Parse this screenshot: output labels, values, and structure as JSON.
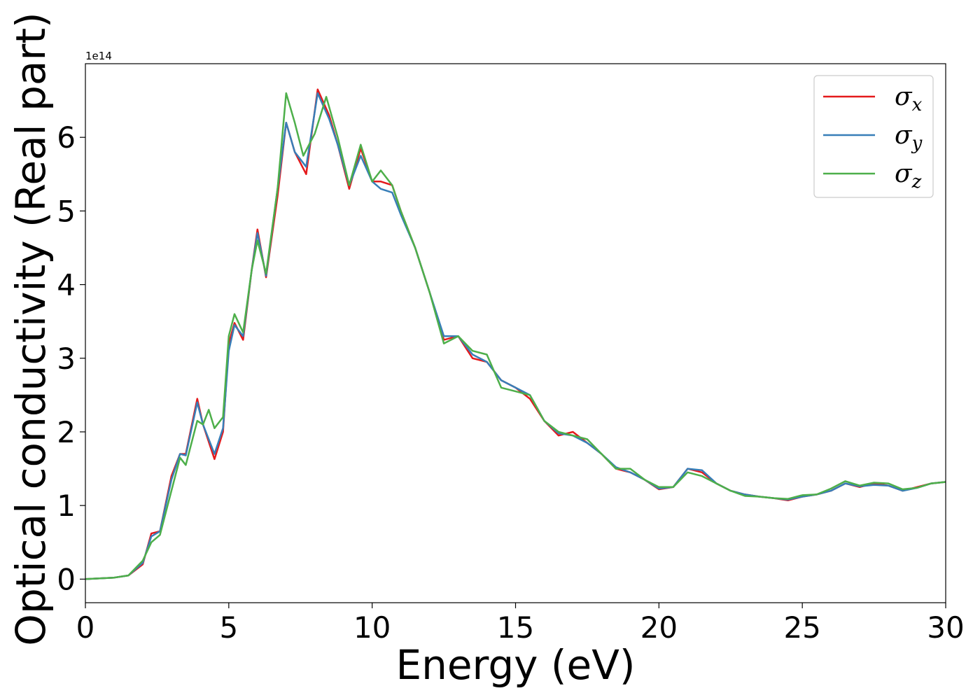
{
  "chart_data": {
    "type": "line",
    "title": "",
    "xlabel": "Energy (eV)",
    "ylabel": "Optical conductivity (Real part)",
    "y_offset_label": "1e14",
    "xlim": [
      0,
      30
    ],
    "ylim": [
      -0.32,
      7.0
    ],
    "xticks": [
      0,
      5,
      10,
      15,
      20,
      25,
      30
    ],
    "xtick_labels": [
      "0",
      "5",
      "10",
      "15",
      "20",
      "25",
      "30"
    ],
    "yticks": [
      0,
      1,
      2,
      3,
      4,
      5,
      6
    ],
    "ytick_labels": [
      "0",
      "1",
      "2",
      "3",
      "4",
      "5",
      "6"
    ],
    "grid": false,
    "legend_position": "top-right",
    "series": [
      {
        "name": "σ",
        "subscript": "x",
        "color": "#e41a1c",
        "points": [
          [
            0,
            0
          ],
          [
            1,
            0.02
          ],
          [
            1.5,
            0.05
          ],
          [
            2,
            0.2
          ],
          [
            2.3,
            0.62
          ],
          [
            2.6,
            0.65
          ],
          [
            3,
            1.4
          ],
          [
            3.3,
            1.7
          ],
          [
            3.5,
            1.7
          ],
          [
            3.9,
            2.45
          ],
          [
            4.1,
            2.1
          ],
          [
            4.5,
            1.63
          ],
          [
            4.8,
            2.0
          ],
          [
            5.0,
            3.2
          ],
          [
            5.2,
            3.48
          ],
          [
            5.5,
            3.25
          ],
          [
            5.8,
            4.2
          ],
          [
            6.0,
            4.75
          ],
          [
            6.3,
            4.1
          ],
          [
            6.7,
            5.2
          ],
          [
            7.0,
            6.2
          ],
          [
            7.3,
            5.8
          ],
          [
            7.7,
            5.5
          ],
          [
            8.1,
            6.65
          ],
          [
            8.5,
            6.3
          ],
          [
            8.8,
            5.9
          ],
          [
            9.2,
            5.3
          ],
          [
            9.6,
            5.85
          ],
          [
            10.0,
            5.4
          ],
          [
            10.3,
            5.4
          ],
          [
            10.7,
            5.35
          ],
          [
            11.0,
            5.0
          ],
          [
            11.5,
            4.5
          ],
          [
            12,
            3.9
          ],
          [
            12.5,
            3.25
          ],
          [
            13,
            3.3
          ],
          [
            13.5,
            3.0
          ],
          [
            14,
            2.95
          ],
          [
            14.5,
            2.7
          ],
          [
            15,
            2.6
          ],
          [
            15.5,
            2.45
          ],
          [
            16,
            2.15
          ],
          [
            16.5,
            1.95
          ],
          [
            17,
            2.0
          ],
          [
            17.5,
            1.85
          ],
          [
            18,
            1.7
          ],
          [
            18.5,
            1.5
          ],
          [
            19,
            1.45
          ],
          [
            19.5,
            1.35
          ],
          [
            20,
            1.22
          ],
          [
            20.5,
            1.25
          ],
          [
            21,
            1.5
          ],
          [
            21.5,
            1.45
          ],
          [
            22,
            1.3
          ],
          [
            22.5,
            1.2
          ],
          [
            23,
            1.15
          ],
          [
            23.5,
            1.12
          ],
          [
            24,
            1.1
          ],
          [
            24.5,
            1.07
          ],
          [
            25,
            1.12
          ],
          [
            25.5,
            1.15
          ],
          [
            26,
            1.2
          ],
          [
            26.5,
            1.3
          ],
          [
            27,
            1.25
          ],
          [
            27.5,
            1.3
          ],
          [
            28,
            1.27
          ],
          [
            28.5,
            1.2
          ],
          [
            29,
            1.25
          ],
          [
            29.5,
            1.3
          ],
          [
            30,
            1.32
          ]
        ]
      },
      {
        "name": "σ",
        "subscript": "y",
        "color": "#377eb8",
        "points": [
          [
            0,
            0
          ],
          [
            1,
            0.02
          ],
          [
            1.5,
            0.05
          ],
          [
            2,
            0.22
          ],
          [
            2.3,
            0.58
          ],
          [
            2.6,
            0.65
          ],
          [
            3,
            1.35
          ],
          [
            3.3,
            1.7
          ],
          [
            3.5,
            1.68
          ],
          [
            3.9,
            2.4
          ],
          [
            4.1,
            2.1
          ],
          [
            4.5,
            1.7
          ],
          [
            4.8,
            2.05
          ],
          [
            5.0,
            3.1
          ],
          [
            5.2,
            3.45
          ],
          [
            5.5,
            3.3
          ],
          [
            5.8,
            4.2
          ],
          [
            6.0,
            4.7
          ],
          [
            6.3,
            4.12
          ],
          [
            6.7,
            5.3
          ],
          [
            7.0,
            6.2
          ],
          [
            7.3,
            5.8
          ],
          [
            7.7,
            5.6
          ],
          [
            8.1,
            6.6
          ],
          [
            8.5,
            6.25
          ],
          [
            8.8,
            5.9
          ],
          [
            9.2,
            5.35
          ],
          [
            9.6,
            5.75
          ],
          [
            10.0,
            5.4
          ],
          [
            10.3,
            5.3
          ],
          [
            10.7,
            5.25
          ],
          [
            11.0,
            4.95
          ],
          [
            11.5,
            4.5
          ],
          [
            12,
            3.9
          ],
          [
            12.5,
            3.3
          ],
          [
            13,
            3.3
          ],
          [
            13.5,
            3.05
          ],
          [
            14,
            2.95
          ],
          [
            14.5,
            2.7
          ],
          [
            15,
            2.6
          ],
          [
            15.5,
            2.5
          ],
          [
            16,
            2.15
          ],
          [
            16.5,
            1.98
          ],
          [
            17,
            1.95
          ],
          [
            17.5,
            1.85
          ],
          [
            18,
            1.7
          ],
          [
            18.5,
            1.52
          ],
          [
            19,
            1.45
          ],
          [
            19.5,
            1.35
          ],
          [
            20,
            1.23
          ],
          [
            20.5,
            1.25
          ],
          [
            21,
            1.5
          ],
          [
            21.5,
            1.48
          ],
          [
            22,
            1.3
          ],
          [
            22.5,
            1.2
          ],
          [
            23,
            1.15
          ],
          [
            23.5,
            1.12
          ],
          [
            24,
            1.1
          ],
          [
            24.5,
            1.08
          ],
          [
            25,
            1.12
          ],
          [
            25.5,
            1.15
          ],
          [
            26,
            1.2
          ],
          [
            26.5,
            1.3
          ],
          [
            27,
            1.26
          ],
          [
            27.5,
            1.28
          ],
          [
            28,
            1.27
          ],
          [
            28.5,
            1.2
          ],
          [
            29,
            1.24
          ],
          [
            29.5,
            1.3
          ],
          [
            30,
            1.32
          ]
        ]
      },
      {
        "name": "σ",
        "subscript": "z",
        "color": "#4daf4a",
        "points": [
          [
            0,
            0
          ],
          [
            1,
            0.02
          ],
          [
            1.5,
            0.05
          ],
          [
            2,
            0.25
          ],
          [
            2.3,
            0.5
          ],
          [
            2.6,
            0.6
          ],
          [
            3,
            1.2
          ],
          [
            3.3,
            1.65
          ],
          [
            3.5,
            1.55
          ],
          [
            3.9,
            2.15
          ],
          [
            4.1,
            2.1
          ],
          [
            4.3,
            2.3
          ],
          [
            4.5,
            2.05
          ],
          [
            4.8,
            2.2
          ],
          [
            5.0,
            3.3
          ],
          [
            5.2,
            3.6
          ],
          [
            5.5,
            3.35
          ],
          [
            5.8,
            4.2
          ],
          [
            6.0,
            4.6
          ],
          [
            6.3,
            4.15
          ],
          [
            6.7,
            5.3
          ],
          [
            7.0,
            6.6
          ],
          [
            7.3,
            6.2
          ],
          [
            7.6,
            5.75
          ],
          [
            8.0,
            6.05
          ],
          [
            8.4,
            6.55
          ],
          [
            8.8,
            6.0
          ],
          [
            9.2,
            5.35
          ],
          [
            9.6,
            5.9
          ],
          [
            10.0,
            5.4
          ],
          [
            10.3,
            5.55
          ],
          [
            10.7,
            5.35
          ],
          [
            11.0,
            5.0
          ],
          [
            11.5,
            4.5
          ],
          [
            12,
            3.9
          ],
          [
            12.5,
            3.2
          ],
          [
            13,
            3.3
          ],
          [
            13.5,
            3.1
          ],
          [
            14,
            3.05
          ],
          [
            14.5,
            2.6
          ],
          [
            15,
            2.55
          ],
          [
            15.5,
            2.5
          ],
          [
            16,
            2.15
          ],
          [
            16.5,
            2.0
          ],
          [
            17,
            1.95
          ],
          [
            17.5,
            1.9
          ],
          [
            18,
            1.7
          ],
          [
            18.5,
            1.5
          ],
          [
            19,
            1.5
          ],
          [
            19.5,
            1.35
          ],
          [
            20,
            1.25
          ],
          [
            20.5,
            1.25
          ],
          [
            21,
            1.45
          ],
          [
            21.5,
            1.4
          ],
          [
            22,
            1.3
          ],
          [
            22.5,
            1.2
          ],
          [
            23,
            1.13
          ],
          [
            23.5,
            1.12
          ],
          [
            24,
            1.1
          ],
          [
            24.5,
            1.09
          ],
          [
            25,
            1.14
          ],
          [
            25.5,
            1.15
          ],
          [
            26,
            1.23
          ],
          [
            26.5,
            1.33
          ],
          [
            27,
            1.27
          ],
          [
            27.5,
            1.31
          ],
          [
            28,
            1.3
          ],
          [
            28.5,
            1.22
          ],
          [
            29,
            1.24
          ],
          [
            29.5,
            1.3
          ],
          [
            30,
            1.32
          ]
        ]
      }
    ]
  }
}
